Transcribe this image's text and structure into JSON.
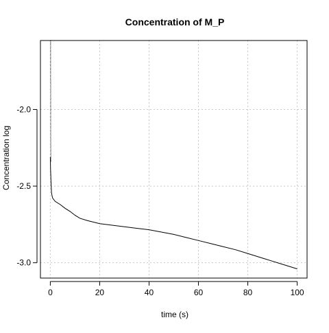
{
  "chart_data": {
    "type": "line",
    "title": "Concentration of M_P",
    "xlabel": "time (s)",
    "ylabel": "Concentration log",
    "xlim": [
      -4,
      104
    ],
    "ylim": [
      -3.1,
      -1.55
    ],
    "xticks": [
      0,
      20,
      40,
      60,
      80,
      100
    ],
    "yticks": [
      -3.0,
      -2.5,
      -2.0
    ],
    "xtick_labels": [
      "0",
      "20",
      "40",
      "60",
      "80",
      "100"
    ],
    "ytick_labels": [
      "-3.0",
      "-2.5",
      "-2.0"
    ],
    "grid": true,
    "series": [
      {
        "x": [
          0,
          0.1,
          0.3,
          0.5,
          0.8,
          1,
          2,
          4,
          6,
          8,
          10,
          12,
          15,
          20,
          25,
          30,
          35,
          40,
          45,
          50,
          55,
          60,
          65,
          70,
          75,
          80,
          85,
          90,
          95,
          100
        ],
        "y": [
          -2.31,
          -2.39,
          -2.48,
          -2.545,
          -2.57,
          -2.58,
          -2.6,
          -2.62,
          -2.645,
          -2.665,
          -2.69,
          -2.71,
          -2.725,
          -2.745,
          -2.755,
          -2.765,
          -2.775,
          -2.785,
          -2.8,
          -2.815,
          -2.835,
          -2.855,
          -2.875,
          -2.895,
          -2.915,
          -2.94,
          -2.965,
          -2.99,
          -3.015,
          -3.04
        ]
      }
    ],
    "spike": {
      "x": [
        0.12,
        0.12,
        0.16,
        0.16,
        0.2,
        0.25
      ],
      "y": [
        -1.55,
        -1.82,
        -1.82,
        -2.15,
        -2.3,
        -2.34
      ]
    }
  }
}
